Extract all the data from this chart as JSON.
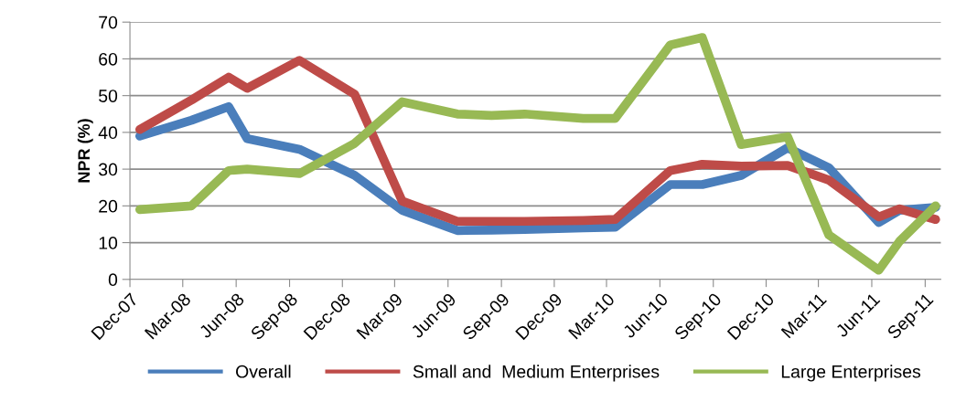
{
  "chart_data": {
    "type": "line",
    "ylabel": "NPR (%)",
    "x": [
      "2007-12-18",
      "2008-03-16",
      "2008-05-19",
      "2008-06-20",
      "2008-09-18",
      "2008-12-22",
      "2009-03-14",
      "2009-06-17",
      "2009-08-15",
      "2009-10-11",
      "2010-01-20",
      "2010-03-16",
      "2010-06-19",
      "2010-08-13",
      "2010-10-19",
      "2011-01-07",
      "2011-03-19",
      "2011-06-13",
      "2011-07-19",
      "2011-09-19"
    ],
    "series": [
      {
        "name": "Overall",
        "color": "#4a7ebb",
        "values": [
          39,
          43.3,
          47,
          38.3,
          35.4,
          28.3,
          18.8,
          13.3,
          13.4,
          13.6,
          14,
          14.2,
          25.8,
          25.8,
          28.3,
          35.8,
          30.4,
          15.5,
          18.8,
          19.6
        ]
      },
      {
        "name": "Small and  Medium Enterprises",
        "color": "#be4b48",
        "values": [
          40.8,
          48.8,
          55,
          52,
          59.6,
          50.4,
          21.3,
          15.8,
          15.8,
          15.8,
          16,
          16.3,
          29.6,
          31.3,
          30.8,
          31,
          27,
          17,
          19.2,
          16.3
        ]
      },
      {
        "name": "Large Enterprises",
        "color": "#98b954",
        "values": [
          19,
          20,
          29.6,
          30,
          28.8,
          37,
          48.3,
          45,
          44.6,
          45,
          43.8,
          43.8,
          63.8,
          65.8,
          36.7,
          38.8,
          12.1,
          2.5,
          10.4,
          20
        ]
      }
    ],
    "xlim": [
      "2007-12-01",
      "2011-09-28"
    ],
    "xticks": [
      {
        "value": "2007-12-01",
        "label": "Dec-07"
      },
      {
        "value": "2008-03-01",
        "label": "Mar-08"
      },
      {
        "value": "2008-06-01",
        "label": "Jun-08"
      },
      {
        "value": "2008-09-01",
        "label": "Sep-08"
      },
      {
        "value": "2008-12-01",
        "label": "Dec-08"
      },
      {
        "value": "2009-03-01",
        "label": "Mar-09"
      },
      {
        "value": "2009-06-01",
        "label": "Jun-09"
      },
      {
        "value": "2009-09-01",
        "label": "Sep-09"
      },
      {
        "value": "2009-12-01",
        "label": "Dec-09"
      },
      {
        "value": "2010-03-01",
        "label": "Mar-10"
      },
      {
        "value": "2010-06-01",
        "label": "Jun-10"
      },
      {
        "value": "2010-09-01",
        "label": "Sep-10"
      },
      {
        "value": "2010-12-01",
        "label": "Dec-10"
      },
      {
        "value": "2011-03-01",
        "label": "Mar-11"
      },
      {
        "value": "2011-06-01",
        "label": "Jun-11"
      },
      {
        "value": "2011-09-01",
        "label": "Sep-11"
      }
    ],
    "ylim": [
      0,
      70
    ],
    "yticks": [
      0,
      10,
      20,
      30,
      40,
      50,
      60,
      70
    ],
    "grid": "y",
    "legend": "bottom",
    "marker": "none",
    "line_style": "solid"
  }
}
